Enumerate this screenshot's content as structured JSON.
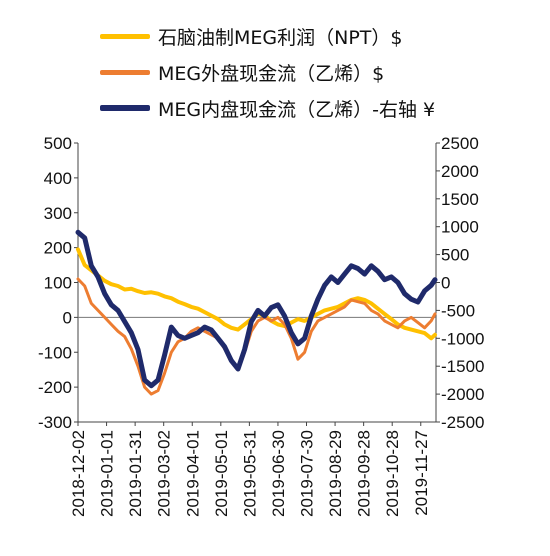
{
  "chart_data": {
    "type": "line",
    "title": "",
    "x": [
      "2018-12-02",
      "2019-01-01",
      "2019-01-31",
      "2019-03-02",
      "2019-04-01",
      "2019-05-01",
      "2019-05-31",
      "2019-06-30",
      "2019-07-30",
      "2019-08-29",
      "2019-09-28",
      "2019-10-28",
      "2019-11-27"
    ],
    "y_left": {
      "ticks": [
        500,
        400,
        300,
        200,
        100,
        0,
        -100,
        -200,
        -300
      ],
      "lim": [
        -300,
        500
      ]
    },
    "y_right": {
      "ticks": [
        2500,
        2000,
        1500,
        1000,
        500,
        0,
        -500,
        -1000,
        -1500,
        -2000,
        -2500
      ],
      "lim": [
        -2500,
        2500
      ]
    },
    "series": [
      {
        "name": "石脑油制MEG利润（NPT）$",
        "axis": "left",
        "color": "#FFC000",
        "points": [
          [
            "2018-12-02",
            195
          ],
          [
            "2018-12-09",
            150
          ],
          [
            "2018-12-16",
            135
          ],
          [
            "2018-12-23",
            120
          ],
          [
            "2018-12-30",
            105
          ],
          [
            "2019-01-06",
            95
          ],
          [
            "2019-01-13",
            90
          ],
          [
            "2019-01-20",
            80
          ],
          [
            "2019-01-27",
            82
          ],
          [
            "2019-02-03",
            75
          ],
          [
            "2019-02-10",
            70
          ],
          [
            "2019-02-17",
            72
          ],
          [
            "2019-02-24",
            68
          ],
          [
            "2019-03-03",
            60
          ],
          [
            "2019-03-10",
            55
          ],
          [
            "2019-03-17",
            45
          ],
          [
            "2019-03-24",
            38
          ],
          [
            "2019-03-31",
            30
          ],
          [
            "2019-04-07",
            25
          ],
          [
            "2019-04-14",
            15
          ],
          [
            "2019-04-21",
            5
          ],
          [
            "2019-04-28",
            -5
          ],
          [
            "2019-05-05",
            -20
          ],
          [
            "2019-05-12",
            -30
          ],
          [
            "2019-05-19",
            -35
          ],
          [
            "2019-05-26",
            -20
          ],
          [
            "2019-06-02",
            -5
          ],
          [
            "2019-06-09",
            10
          ],
          [
            "2019-06-16",
            5
          ],
          [
            "2019-06-23",
            -10
          ],
          [
            "2019-06-30",
            -20
          ],
          [
            "2019-07-07",
            -25
          ],
          [
            "2019-07-14",
            -15
          ],
          [
            "2019-07-21",
            -5
          ],
          [
            "2019-07-28",
            -10
          ],
          [
            "2019-08-04",
            0
          ],
          [
            "2019-08-11",
            10
          ],
          [
            "2019-08-18",
            20
          ],
          [
            "2019-08-25",
            25
          ],
          [
            "2019-09-01",
            30
          ],
          [
            "2019-09-08",
            40
          ],
          [
            "2019-09-15",
            50
          ],
          [
            "2019-09-22",
            55
          ],
          [
            "2019-09-29",
            50
          ],
          [
            "2019-10-06",
            40
          ],
          [
            "2019-10-13",
            25
          ],
          [
            "2019-10-20",
            10
          ],
          [
            "2019-10-27",
            -5
          ],
          [
            "2019-11-03",
            -20
          ],
          [
            "2019-11-10",
            -30
          ],
          [
            "2019-11-17",
            -35
          ],
          [
            "2019-11-24",
            -40
          ],
          [
            "2019-12-01",
            -45
          ],
          [
            "2019-12-08",
            -60
          ],
          [
            "2019-12-12",
            -50
          ]
        ]
      },
      {
        "name": "MEG外盘现金流（乙烯）$",
        "axis": "left",
        "color": "#ED7D31",
        "points": [
          [
            "2018-12-02",
            110
          ],
          [
            "2018-12-09",
            90
          ],
          [
            "2018-12-16",
            40
          ],
          [
            "2018-12-23",
            20
          ],
          [
            "2018-12-30",
            0
          ],
          [
            "2019-01-06",
            -20
          ],
          [
            "2019-01-13",
            -40
          ],
          [
            "2019-01-20",
            -55
          ],
          [
            "2019-01-27",
            -90
          ],
          [
            "2019-02-03",
            -140
          ],
          [
            "2019-02-10",
            -200
          ],
          [
            "2019-02-17",
            -220
          ],
          [
            "2019-02-24",
            -210
          ],
          [
            "2019-03-03",
            -160
          ],
          [
            "2019-03-10",
            -100
          ],
          [
            "2019-03-17",
            -70
          ],
          [
            "2019-03-24",
            -60
          ],
          [
            "2019-03-31",
            -40
          ],
          [
            "2019-04-07",
            -30
          ],
          [
            "2019-04-14",
            -40
          ],
          [
            "2019-04-21",
            -50
          ],
          [
            "2019-04-28",
            -60
          ],
          [
            "2019-05-05",
            -90
          ],
          [
            "2019-05-12",
            -120
          ],
          [
            "2019-05-19",
            -150
          ],
          [
            "2019-05-26",
            -100
          ],
          [
            "2019-06-02",
            -40
          ],
          [
            "2019-06-09",
            -10
          ],
          [
            "2019-06-16",
            0
          ],
          [
            "2019-06-23",
            -10
          ],
          [
            "2019-06-30",
            0
          ],
          [
            "2019-07-07",
            -20
          ],
          [
            "2019-07-14",
            -60
          ],
          [
            "2019-07-21",
            -120
          ],
          [
            "2019-07-28",
            -100
          ],
          [
            "2019-08-04",
            -40
          ],
          [
            "2019-08-11",
            -10
          ],
          [
            "2019-08-18",
            0
          ],
          [
            "2019-08-25",
            10
          ],
          [
            "2019-09-01",
            20
          ],
          [
            "2019-09-08",
            30
          ],
          [
            "2019-09-15",
            50
          ],
          [
            "2019-09-22",
            45
          ],
          [
            "2019-09-29",
            40
          ],
          [
            "2019-10-06",
            20
          ],
          [
            "2019-10-13",
            10
          ],
          [
            "2019-10-20",
            -10
          ],
          [
            "2019-10-27",
            -20
          ],
          [
            "2019-11-03",
            -30
          ],
          [
            "2019-11-10",
            -10
          ],
          [
            "2019-11-17",
            0
          ],
          [
            "2019-11-24",
            -15
          ],
          [
            "2019-12-01",
            -30
          ],
          [
            "2019-12-08",
            -10
          ],
          [
            "2019-12-12",
            10
          ]
        ]
      },
      {
        "name": "MEG内盘现金流（乙烯）-右轴 ¥",
        "axis": "right",
        "color": "#1F2A6B",
        "points": [
          [
            "2018-12-02",
            900
          ],
          [
            "2018-12-09",
            800
          ],
          [
            "2018-12-16",
            300
          ],
          [
            "2018-12-23",
            100
          ],
          [
            "2018-12-30",
            -200
          ],
          [
            "2019-01-06",
            -400
          ],
          [
            "2019-01-13",
            -500
          ],
          [
            "2019-01-20",
            -700
          ],
          [
            "2019-01-27",
            -900
          ],
          [
            "2019-02-03",
            -1200
          ],
          [
            "2019-02-10",
            -1750
          ],
          [
            "2019-02-17",
            -1850
          ],
          [
            "2019-02-24",
            -1750
          ],
          [
            "2019-03-03",
            -1300
          ],
          [
            "2019-03-10",
            -800
          ],
          [
            "2019-03-17",
            -950
          ],
          [
            "2019-03-24",
            -1000
          ],
          [
            "2019-03-31",
            -950
          ],
          [
            "2019-04-07",
            -900
          ],
          [
            "2019-04-14",
            -800
          ],
          [
            "2019-04-21",
            -850
          ],
          [
            "2019-04-28",
            -1000
          ],
          [
            "2019-05-05",
            -1150
          ],
          [
            "2019-05-12",
            -1400
          ],
          [
            "2019-05-19",
            -1550
          ],
          [
            "2019-05-26",
            -1200
          ],
          [
            "2019-06-02",
            -700
          ],
          [
            "2019-06-09",
            -500
          ],
          [
            "2019-06-16",
            -600
          ],
          [
            "2019-06-23",
            -450
          ],
          [
            "2019-06-30",
            -400
          ],
          [
            "2019-07-07",
            -600
          ],
          [
            "2019-07-14",
            -900
          ],
          [
            "2019-07-21",
            -1100
          ],
          [
            "2019-07-28",
            -1000
          ],
          [
            "2019-08-04",
            -600
          ],
          [
            "2019-08-11",
            -300
          ],
          [
            "2019-08-18",
            -50
          ],
          [
            "2019-08-25",
            100
          ],
          [
            "2019-09-01",
            0
          ],
          [
            "2019-09-08",
            150
          ],
          [
            "2019-09-15",
            300
          ],
          [
            "2019-09-22",
            250
          ],
          [
            "2019-09-29",
            150
          ],
          [
            "2019-10-06",
            300
          ],
          [
            "2019-10-13",
            200
          ],
          [
            "2019-10-20",
            50
          ],
          [
            "2019-10-27",
            100
          ],
          [
            "2019-11-03",
            0
          ],
          [
            "2019-11-10",
            -200
          ],
          [
            "2019-11-17",
            -300
          ],
          [
            "2019-11-24",
            -350
          ],
          [
            "2019-12-01",
            -150
          ],
          [
            "2019-12-08",
            -50
          ],
          [
            "2019-12-12",
            50
          ]
        ]
      }
    ]
  }
}
